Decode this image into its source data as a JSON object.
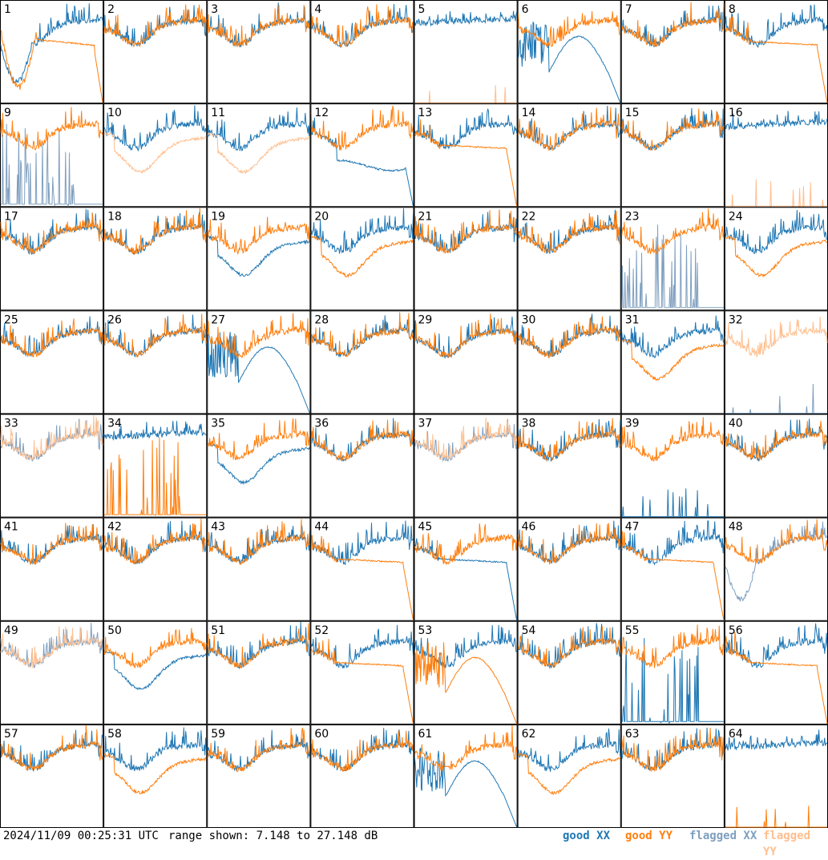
{
  "footer": {
    "timestamp": "2024/11/09 00:25:31 UTC",
    "range": "range shown: 7.148 to 27.148 dB"
  },
  "legend": [
    {
      "label": "good XX",
      "color": "#1f77b4"
    },
    {
      "label": "good YY",
      "color": "#ff7f0e"
    },
    {
      "label": "flagged XX",
      "color": "#7f9fbf"
    },
    {
      "label": "flagged YY",
      "color": "#ffbf8f"
    }
  ],
  "chart_data": {
    "type": "line",
    "title": "",
    "ylabel": "",
    "xlabel": "",
    "ylim": [
      7.148,
      27.148
    ],
    "units": "dB",
    "grid": false,
    "panels": [
      {
        "id": 1,
        "xx": "dip",
        "yy": "dip_roll",
        "xx_flag": false,
        "yy_flag": false
      },
      {
        "id": 2,
        "xx": "std",
        "yy": "std",
        "xx_flag": false,
        "yy_flag": false
      },
      {
        "id": 3,
        "xx": "std",
        "yy": "std",
        "xx_flag": false,
        "yy_flag": false
      },
      {
        "id": 4,
        "xx": "std",
        "yy": "std",
        "xx_flag": false,
        "yy_flag": false
      },
      {
        "id": 5,
        "xx": "high",
        "yy": "dead",
        "xx_flag": false,
        "yy_flag": true
      },
      {
        "id": 6,
        "xx": "osc_roll",
        "yy": "std",
        "xx_flag": false,
        "yy_flag": false
      },
      {
        "id": 7,
        "xx": "std",
        "yy": "std",
        "xx_flag": false,
        "yy_flag": false
      },
      {
        "id": 8,
        "xx": "std",
        "yy": "roll",
        "xx_flag": false,
        "yy_flag": false
      },
      {
        "id": 9,
        "xx": "dead_spikes",
        "yy": "std",
        "xx_flag": true,
        "yy_flag": false
      },
      {
        "id": 10,
        "xx": "std",
        "yy": "low",
        "xx_flag": false,
        "yy_flag": true
      },
      {
        "id": 11,
        "xx": "std",
        "yy": "low",
        "xx_flag": false,
        "yy_flag": true
      },
      {
        "id": 12,
        "xx": "roll_low",
        "yy": "std",
        "xx_flag": false,
        "yy_flag": false
      },
      {
        "id": 13,
        "xx": "std",
        "yy": "roll",
        "xx_flag": false,
        "yy_flag": false
      },
      {
        "id": 14,
        "xx": "std",
        "yy": "std",
        "xx_flag": false,
        "yy_flag": false
      },
      {
        "id": 15,
        "xx": "std",
        "yy": "std",
        "xx_flag": false,
        "yy_flag": false
      },
      {
        "id": 16,
        "xx": "high",
        "yy": "dead",
        "xx_flag": false,
        "yy_flag": true
      },
      {
        "id": 17,
        "xx": "std",
        "yy": "std",
        "xx_flag": false,
        "yy_flag": false
      },
      {
        "id": 18,
        "xx": "std",
        "yy": "std",
        "xx_flag": false,
        "yy_flag": false
      },
      {
        "id": 19,
        "xx": "low",
        "yy": "std",
        "xx_flag": false,
        "yy_flag": false
      },
      {
        "id": 20,
        "xx": "std",
        "yy": "low",
        "xx_flag": false,
        "yy_flag": false
      },
      {
        "id": 21,
        "xx": "std",
        "yy": "std",
        "xx_flag": false,
        "yy_flag": false
      },
      {
        "id": 22,
        "xx": "std",
        "yy": "std",
        "xx_flag": false,
        "yy_flag": false
      },
      {
        "id": 23,
        "xx": "dead_spikes",
        "yy": "std",
        "xx_flag": true,
        "yy_flag": false
      },
      {
        "id": 24,
        "xx": "std",
        "yy": "low",
        "xx_flag": false,
        "yy_flag": false
      },
      {
        "id": 25,
        "xx": "std",
        "yy": "std",
        "xx_flag": false,
        "yy_flag": false
      },
      {
        "id": 26,
        "xx": "std",
        "yy": "std",
        "xx_flag": false,
        "yy_flag": false
      },
      {
        "id": 27,
        "xx": "osc_roll",
        "yy": "std",
        "xx_flag": false,
        "yy_flag": false
      },
      {
        "id": 28,
        "xx": "std",
        "yy": "std",
        "xx_flag": false,
        "yy_flag": false
      },
      {
        "id": 29,
        "xx": "std",
        "yy": "std",
        "xx_flag": false,
        "yy_flag": false
      },
      {
        "id": 30,
        "xx": "std",
        "yy": "std",
        "xx_flag": false,
        "yy_flag": false
      },
      {
        "id": 31,
        "xx": "std",
        "yy": "low",
        "xx_flag": false,
        "yy_flag": false
      },
      {
        "id": 32,
        "xx": "dead",
        "yy": "std",
        "xx_flag": true,
        "yy_flag": true
      },
      {
        "id": 33,
        "xx": "std",
        "yy": "std",
        "xx_flag": true,
        "yy_flag": true
      },
      {
        "id": 34,
        "xx": "high",
        "yy": "dead_spikes",
        "xx_flag": false,
        "yy_flag": false
      },
      {
        "id": 35,
        "xx": "low",
        "yy": "std",
        "xx_flag": false,
        "yy_flag": false
      },
      {
        "id": 36,
        "xx": "std",
        "yy": "std",
        "xx_flag": false,
        "yy_flag": false
      },
      {
        "id": 37,
        "xx": "std",
        "yy": "std",
        "xx_flag": true,
        "yy_flag": true
      },
      {
        "id": 38,
        "xx": "std",
        "yy": "std",
        "xx_flag": false,
        "yy_flag": false
      },
      {
        "id": 39,
        "xx": "dead",
        "yy": "std",
        "xx_flag": false,
        "yy_flag": false
      },
      {
        "id": 40,
        "xx": "std",
        "yy": "std",
        "xx_flag": false,
        "yy_flag": false
      },
      {
        "id": 41,
        "xx": "std",
        "yy": "std",
        "xx_flag": false,
        "yy_flag": false
      },
      {
        "id": 42,
        "xx": "std",
        "yy": "std",
        "xx_flag": false,
        "yy_flag": false
      },
      {
        "id": 43,
        "xx": "std",
        "yy": "std",
        "xx_flag": false,
        "yy_flag": false
      },
      {
        "id": 44,
        "xx": "std",
        "yy": "roll",
        "xx_flag": false,
        "yy_flag": false
      },
      {
        "id": 45,
        "xx": "roll",
        "yy": "std",
        "xx_flag": false,
        "yy_flag": false
      },
      {
        "id": 46,
        "xx": "std",
        "yy": "std",
        "xx_flag": false,
        "yy_flag": false
      },
      {
        "id": 47,
        "xx": "std",
        "yy": "roll",
        "xx_flag": false,
        "yy_flag": false
      },
      {
        "id": 48,
        "xx": "dip",
        "yy": "std",
        "xx_flag": true,
        "yy_flag": false
      },
      {
        "id": 49,
        "xx": "std",
        "yy": "std",
        "xx_flag": true,
        "yy_flag": true
      },
      {
        "id": 50,
        "xx": "low",
        "yy": "std",
        "xx_flag": false,
        "yy_flag": false
      },
      {
        "id": 51,
        "xx": "std",
        "yy": "std",
        "xx_flag": false,
        "yy_flag": false
      },
      {
        "id": 52,
        "xx": "std",
        "yy": "roll",
        "xx_flag": false,
        "yy_flag": false
      },
      {
        "id": 53,
        "xx": "std",
        "yy": "osc_roll",
        "xx_flag": false,
        "yy_flag": false
      },
      {
        "id": 54,
        "xx": "std",
        "yy": "std",
        "xx_flag": false,
        "yy_flag": false
      },
      {
        "id": 55,
        "xx": "dead_spikes",
        "yy": "std",
        "xx_flag": false,
        "yy_flag": false
      },
      {
        "id": 56,
        "xx": "std",
        "yy": "roll",
        "xx_flag": false,
        "yy_flag": false
      },
      {
        "id": 57,
        "xx": "std",
        "yy": "std",
        "xx_flag": false,
        "yy_flag": false
      },
      {
        "id": 58,
        "xx": "std",
        "yy": "low",
        "xx_flag": false,
        "yy_flag": false
      },
      {
        "id": 59,
        "xx": "std",
        "yy": "std",
        "xx_flag": false,
        "yy_flag": false
      },
      {
        "id": 60,
        "xx": "std",
        "yy": "std",
        "xx_flag": false,
        "yy_flag": false
      },
      {
        "id": 61,
        "xx": "osc_roll",
        "yy": "std",
        "xx_flag": false,
        "yy_flag": false
      },
      {
        "id": 62,
        "xx": "std",
        "yy": "low",
        "xx_flag": false,
        "yy_flag": false
      },
      {
        "id": 63,
        "xx": "std",
        "yy": "std",
        "xx_flag": false,
        "yy_flag": false
      },
      {
        "id": 64,
        "xx": "high",
        "yy": "dead",
        "xx_flag": false,
        "yy_flag": false
      }
    ]
  }
}
